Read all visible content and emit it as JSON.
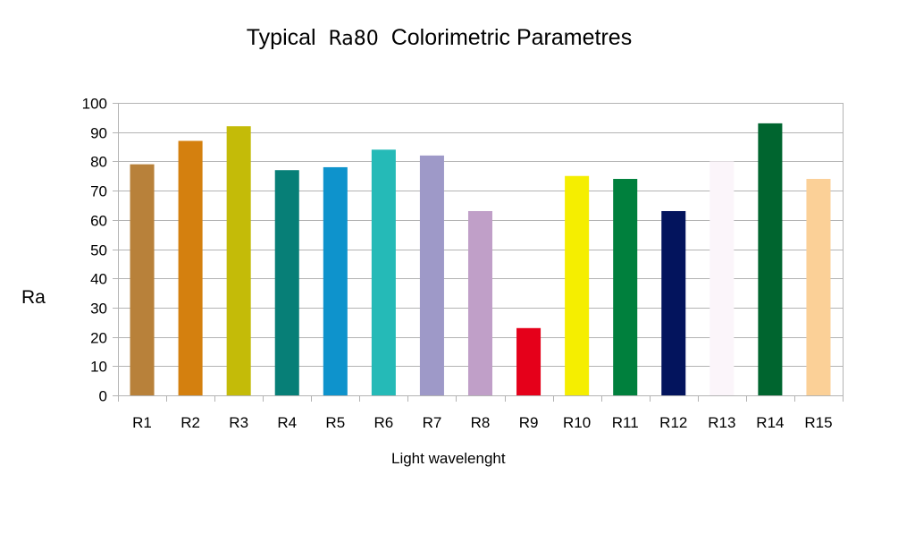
{
  "title": {
    "part1": "Typical",
    "part2": "Ra80",
    "part3": "Colorimetric Parametres"
  },
  "chart_data": {
    "type": "bar",
    "title": "Typical Ra80 Colorimetric Parametres",
    "xlabel": "Light wavelenght",
    "ylabel": "Ra",
    "ylim": [
      0,
      100
    ],
    "yticks": [
      0,
      10,
      20,
      30,
      40,
      50,
      60,
      70,
      80,
      90,
      100
    ],
    "grid": true,
    "legend": "none",
    "categories": [
      "R1",
      "R2",
      "R3",
      "R4",
      "R5",
      "R6",
      "R7",
      "R8",
      "R9",
      "R10",
      "R11",
      "R12",
      "R13",
      "R14",
      "R15"
    ],
    "values": [
      79,
      87,
      92,
      77,
      78,
      84,
      82,
      63,
      23,
      75,
      74,
      63,
      80,
      93,
      74
    ],
    "colors": [
      "#b8813a",
      "#d4800f",
      "#c4bb08",
      "#077f77",
      "#0e93cc",
      "#25bab7",
      "#9e99c8",
      "#c09fc8",
      "#e5001a",
      "#f5ee00",
      "#00803d",
      "#03145d",
      "#fbf5fa",
      "#00652f",
      "#fbd097"
    ]
  }
}
